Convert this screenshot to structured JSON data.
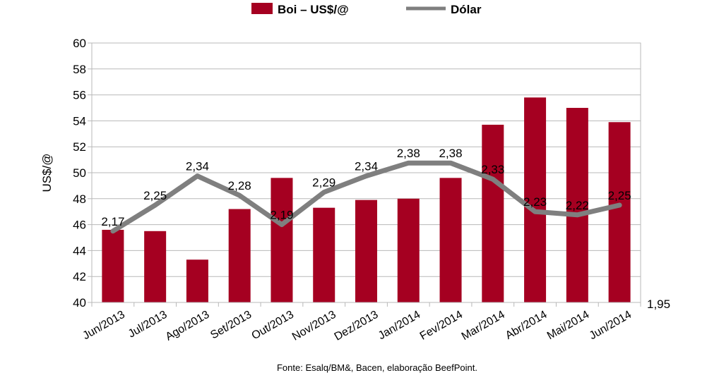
{
  "chart_data": {
    "type": "bar",
    "title": "",
    "xlabel": "",
    "ylabel": "US$/@",
    "ylim": [
      40,
      60
    ],
    "yticks": [
      40,
      42,
      44,
      46,
      48,
      50,
      52,
      54,
      56,
      58,
      60
    ],
    "secondary_axis_label": "1,95",
    "secondary_ylim": [
      1.95,
      2.75
    ],
    "grid": true,
    "legend_position": "top-center",
    "categories": [
      "Jun/2013",
      "Jul/2013",
      "Ago/2013",
      "Set/2013",
      "Out/2013",
      "Nov/2013",
      "Dez/2013",
      "Jan/2014",
      "Fev/2014",
      "Mar/2014",
      "Abr/2014",
      "Mai/2014",
      "Jun/2014"
    ],
    "series": [
      {
        "name": "Boi – US$/@",
        "type": "bar",
        "color": "#a50021",
        "values": [
          45.6,
          45.5,
          43.3,
          47.2,
          49.6,
          47.3,
          47.9,
          48.0,
          49.6,
          53.7,
          55.8,
          55.0,
          53.9
        ]
      },
      {
        "name": "Dólar",
        "type": "line",
        "color": "#7f7f7f",
        "values": [
          2.17,
          2.25,
          2.34,
          2.28,
          2.19,
          2.29,
          2.34,
          2.38,
          2.38,
          2.33,
          2.23,
          2.22,
          2.25
        ],
        "labels": [
          "2,17",
          "2,25",
          "2,34",
          "2,28",
          "2,19",
          "2,29",
          "2,34",
          "2,38",
          "2,38",
          "2,33",
          "2,23",
          "2,22",
          "2,25"
        ]
      }
    ],
    "source": "Fonte: Esalq/BM&, Bacen, elaboração BeefPoint."
  }
}
